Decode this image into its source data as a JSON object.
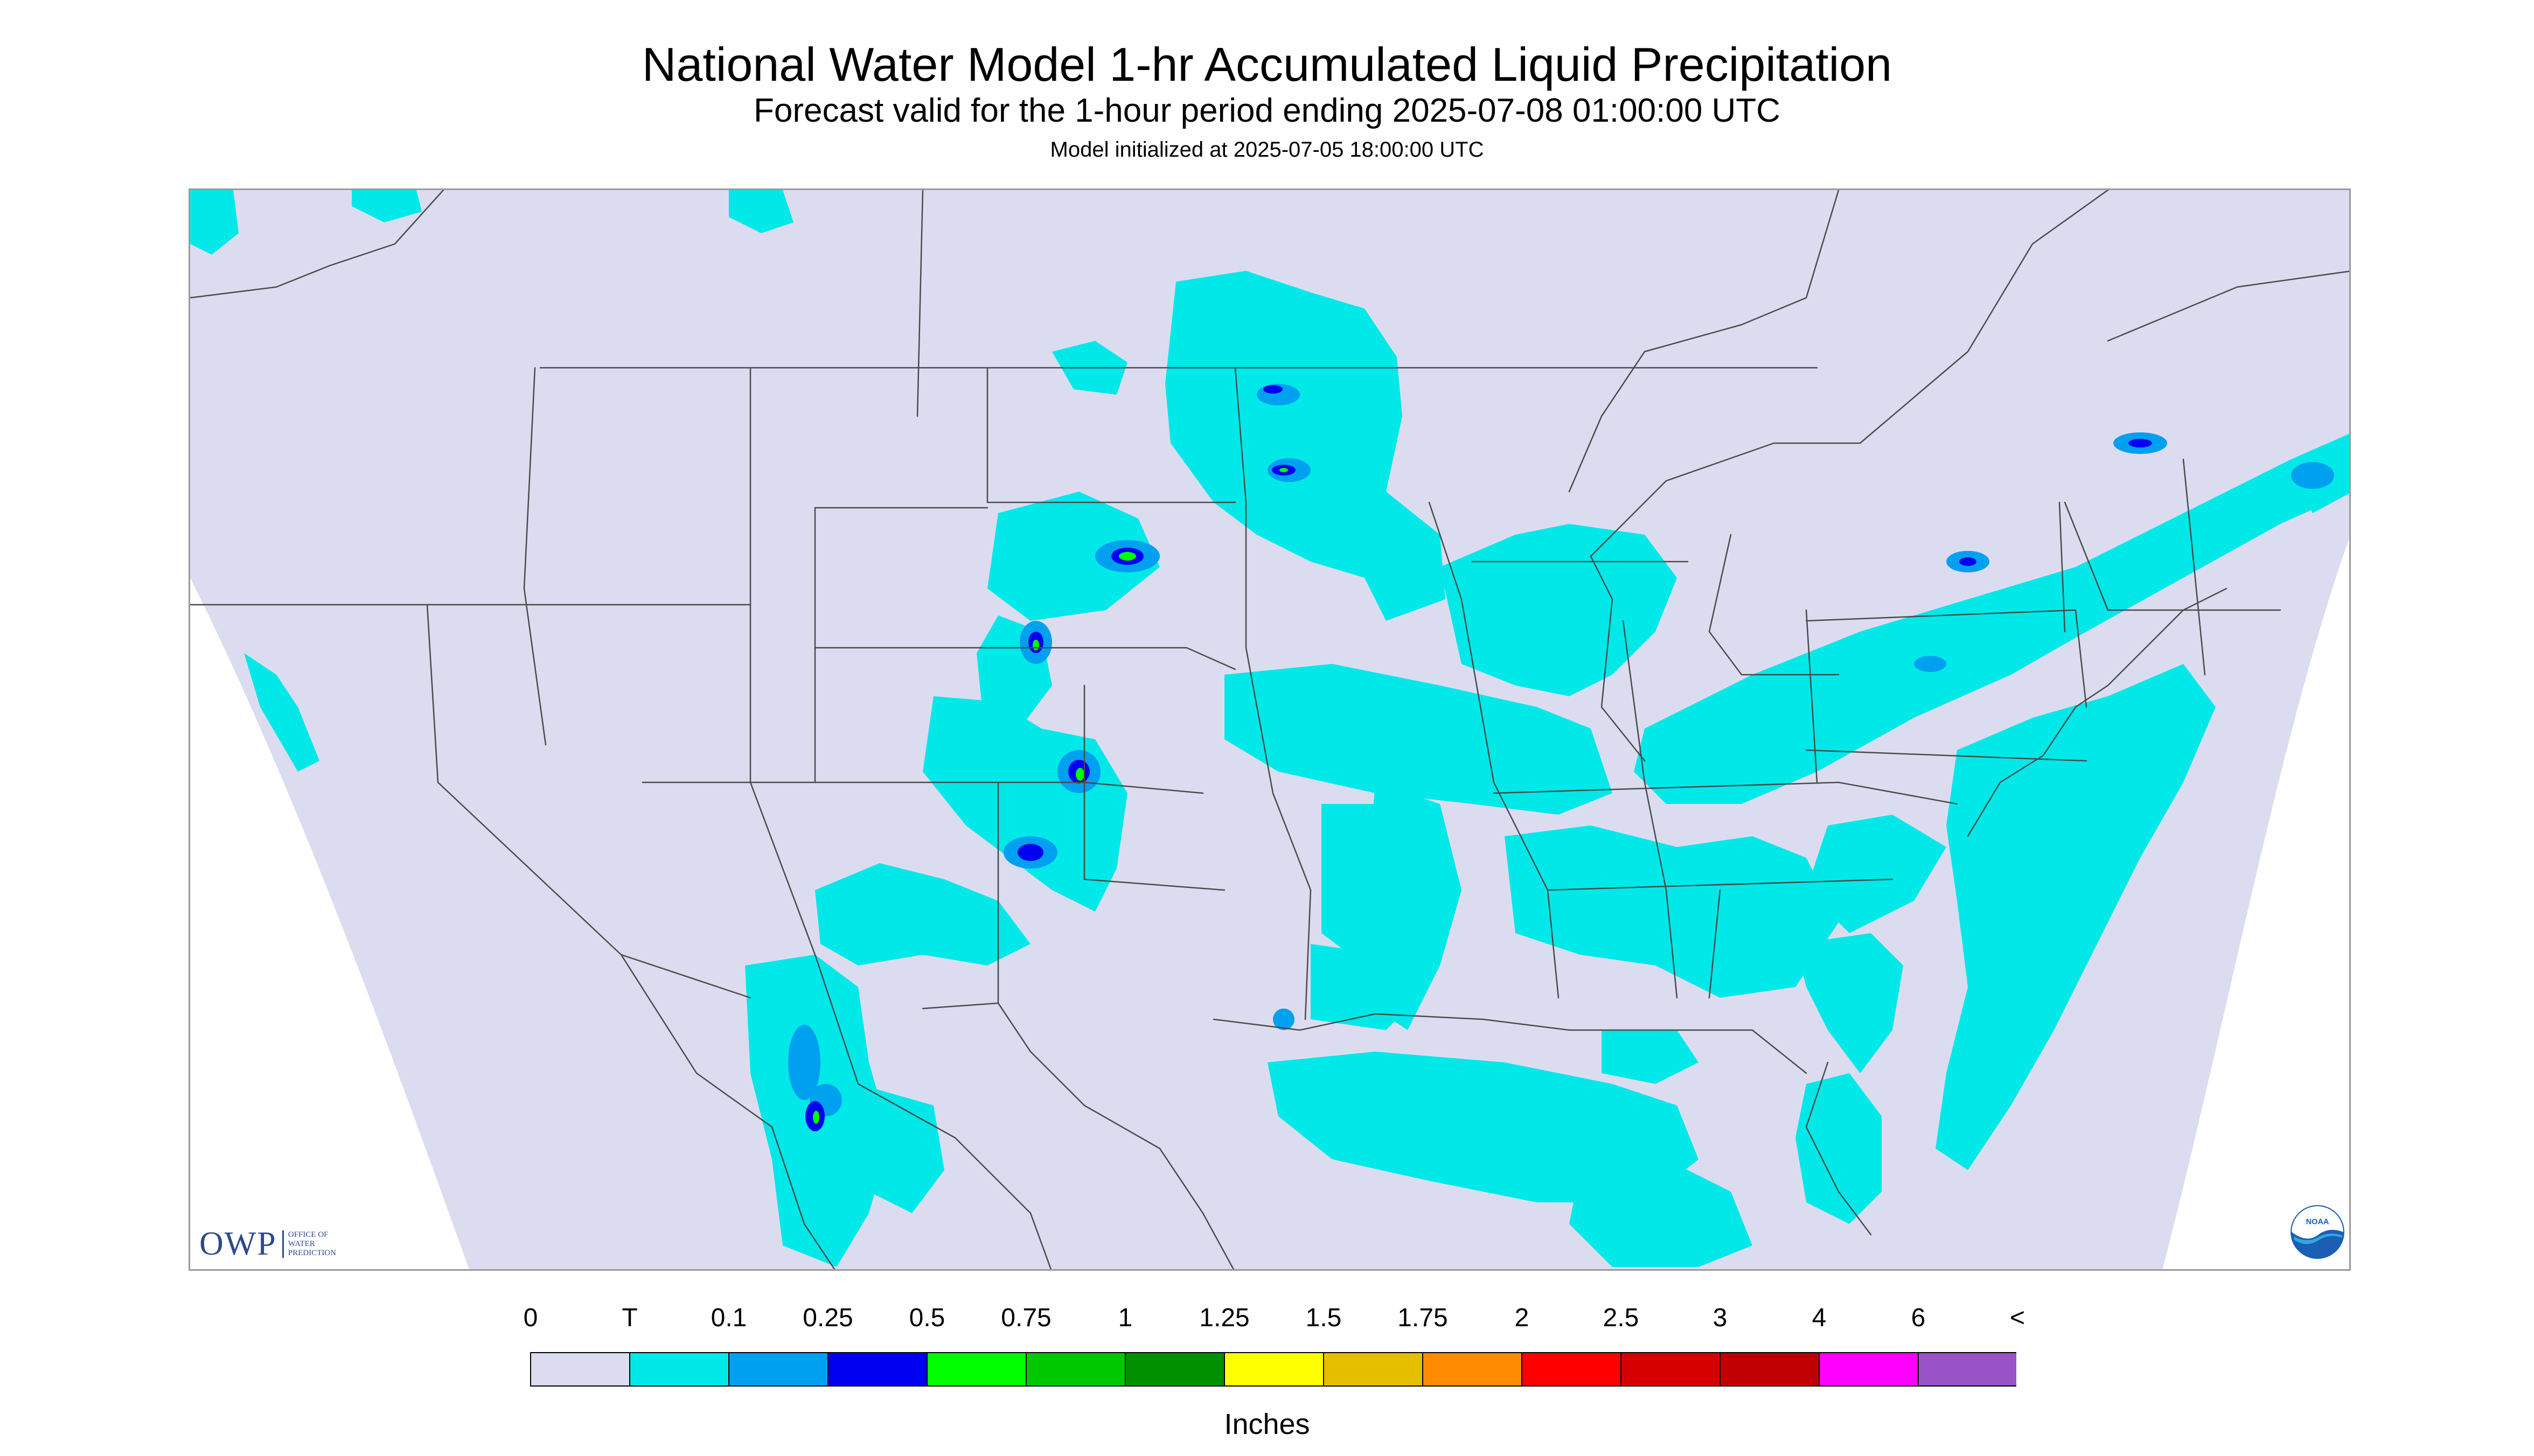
{
  "header": {
    "title": "National Water Model 1-hr Accumulated Liquid Precipitation",
    "subtitle": "Forecast valid for the 1-hour period ending 2025-07-08 01:00:00 UTC",
    "init_line": "Model initialized at 2025-07-05 18:00:00 UTC"
  },
  "logos": {
    "owp_word": "OWP",
    "owp_sub": [
      "Office of",
      "Water",
      "Prediction"
    ],
    "noaa": "NOAA"
  },
  "colorbar": {
    "labels": [
      "0",
      "T",
      "0.1",
      "0.25",
      "0.5",
      "0.75",
      "1",
      "1.25",
      "1.5",
      "1.75",
      "2",
      "2.5",
      "3",
      "4",
      "6",
      "<"
    ],
    "colors": [
      "#dcdcf0",
      "#00e8e8",
      "#00a0f0",
      "#0000f0",
      "#00ff00",
      "#00c800",
      "#009000",
      "#ffff00",
      "#e6be00",
      "#ff8c00",
      "#ff0000",
      "#d60000",
      "#c00000",
      "#ff00ff",
      "#9854c6"
    ],
    "units": "Inches"
  },
  "map_colors": {
    "nodata": "#ffffff",
    "zero": "#dcdcf0",
    "trace": "#00e8e8",
    "light": "#00a0f0",
    "moderate": "#0000f0",
    "heavy": "#00ff00",
    "heavier": "#00c800",
    "boundary": "#4a4a4a"
  }
}
